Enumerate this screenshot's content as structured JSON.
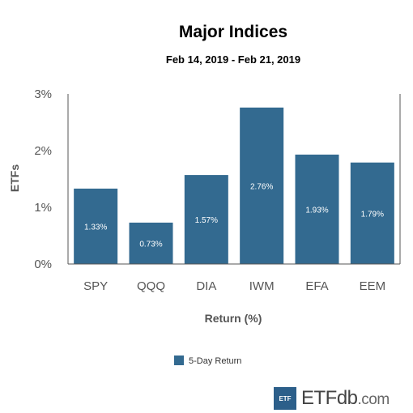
{
  "chart_data": {
    "type": "bar",
    "title": "Major Indices",
    "subtitle": "Feb 14, 2019 - Feb 21, 2019",
    "xlabel": "Return (%)",
    "ylabel": "ETFs",
    "categories": [
      "SPY",
      "QQQ",
      "DIA",
      "IWM",
      "EFA",
      "EEM"
    ],
    "series": [
      {
        "name": "5-Day Return",
        "values": [
          1.33,
          0.73,
          1.57,
          2.76,
          1.93,
          1.79
        ],
        "labels": [
          "1.33%",
          "0.73%",
          "1.57%",
          "2.76%",
          "1.93%",
          "1.79%"
        ],
        "color": "#336a90"
      }
    ],
    "ylim": [
      0,
      3
    ],
    "yticks": [
      {
        "value": 0,
        "label": "0%"
      },
      {
        "value": 1,
        "label": "1%"
      },
      {
        "value": 2,
        "label": "2%"
      },
      {
        "value": 3,
        "label": "3%"
      }
    ],
    "grid": false,
    "legend_position": "bottom"
  },
  "branding": {
    "logo_box": "ETF",
    "logo_word": "ETFdb",
    "logo_suffix": ".com"
  }
}
